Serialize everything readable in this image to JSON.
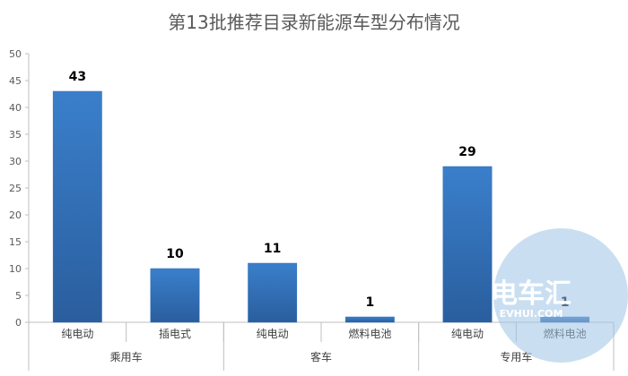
{
  "chart_data": {
    "type": "bar",
    "title": "第13批推荐目录新能源车型分布情况",
    "xlabel": "",
    "ylabel": "",
    "ylim": [
      0,
      50
    ],
    "yticks": [
      0,
      5,
      10,
      15,
      20,
      25,
      30,
      35,
      40,
      45,
      50
    ],
    "grid": false,
    "legend": "none",
    "bar_color": "#2F6EBA",
    "categories": [
      "纯电动",
      "插电式",
      "纯电动",
      "燃料电池",
      "纯电动",
      "燃料电池"
    ],
    "groups": [
      {
        "name": "乘用车",
        "span": [
          0,
          1
        ]
      },
      {
        "name": "客车",
        "span": [
          2,
          3
        ]
      },
      {
        "name": "专用车",
        "span": [
          4,
          5
        ]
      }
    ],
    "values": [
      43,
      10,
      11,
      1,
      29,
      1
    ]
  },
  "watermark": {
    "text": "电车汇",
    "sub": "EVHUI.COM",
    "color": "#9DC3E6"
  }
}
